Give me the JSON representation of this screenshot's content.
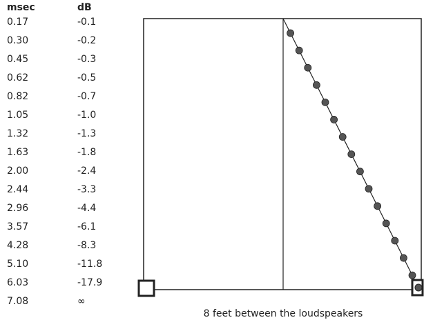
{
  "table": {
    "headers": [
      "msec",
      "dB"
    ],
    "rows": [
      [
        "0.17",
        "-0.1"
      ],
      [
        "0.30",
        "-0.2"
      ],
      [
        "0.45",
        "-0.3"
      ],
      [
        "0.62",
        "-0.5"
      ],
      [
        "0.82",
        "-0.7"
      ],
      [
        "1.05",
        "-1.0"
      ],
      [
        "1.32",
        "-1.3"
      ],
      [
        "1.63",
        "-1.8"
      ],
      [
        "2.00",
        "-2.4"
      ],
      [
        "2.44",
        "-3.3"
      ],
      [
        "2.96",
        "-4.4"
      ],
      [
        "3.57",
        "-6.1"
      ],
      [
        "4.28",
        "-8.3"
      ],
      [
        "5.10",
        "-11.8"
      ],
      [
        "6.03",
        "-17.9"
      ],
      [
        "7.08",
        "∞"
      ]
    ]
  },
  "caption": "8 feet between the loudspeakers"
}
